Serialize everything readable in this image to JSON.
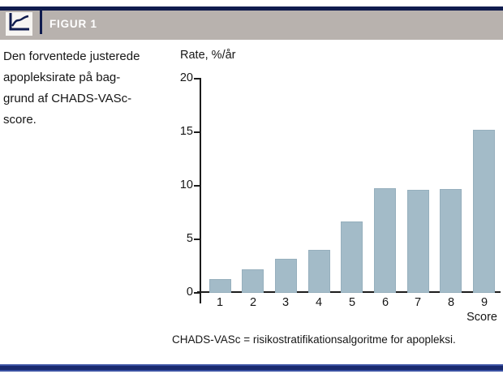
{
  "header": {
    "title": "FIGUR 1",
    "icon": "line-chart-icon"
  },
  "caption": {
    "text": "Den forventede justerede\napopleksirate på bag-\ngrund af CHADS-VASc-\nscore."
  },
  "footnote": {
    "text": "CHADS-VASc = risikostratifikationsalgoritme for apopleksi."
  },
  "colors": {
    "navy": "#101c4e",
    "header_gray": "#b8b2ae",
    "bar_fill": "#a3bbc8",
    "bar_edge": "#96afbd",
    "axis": "#1c1c1c"
  },
  "chart_data": {
    "type": "bar",
    "categories": [
      "1",
      "2",
      "3",
      "4",
      "5",
      "6",
      "7",
      "8",
      "9"
    ],
    "values": [
      1.3,
      2.2,
      3.2,
      4.0,
      6.7,
      9.8,
      9.6,
      9.7,
      15.2
    ],
    "title": "",
    "xlabel": "Score",
    "ylabel": "Rate, %/år",
    "ylim": [
      0,
      20
    ],
    "yticks": [
      0,
      5,
      10,
      15,
      20
    ],
    "grid": false,
    "legend": null
  }
}
